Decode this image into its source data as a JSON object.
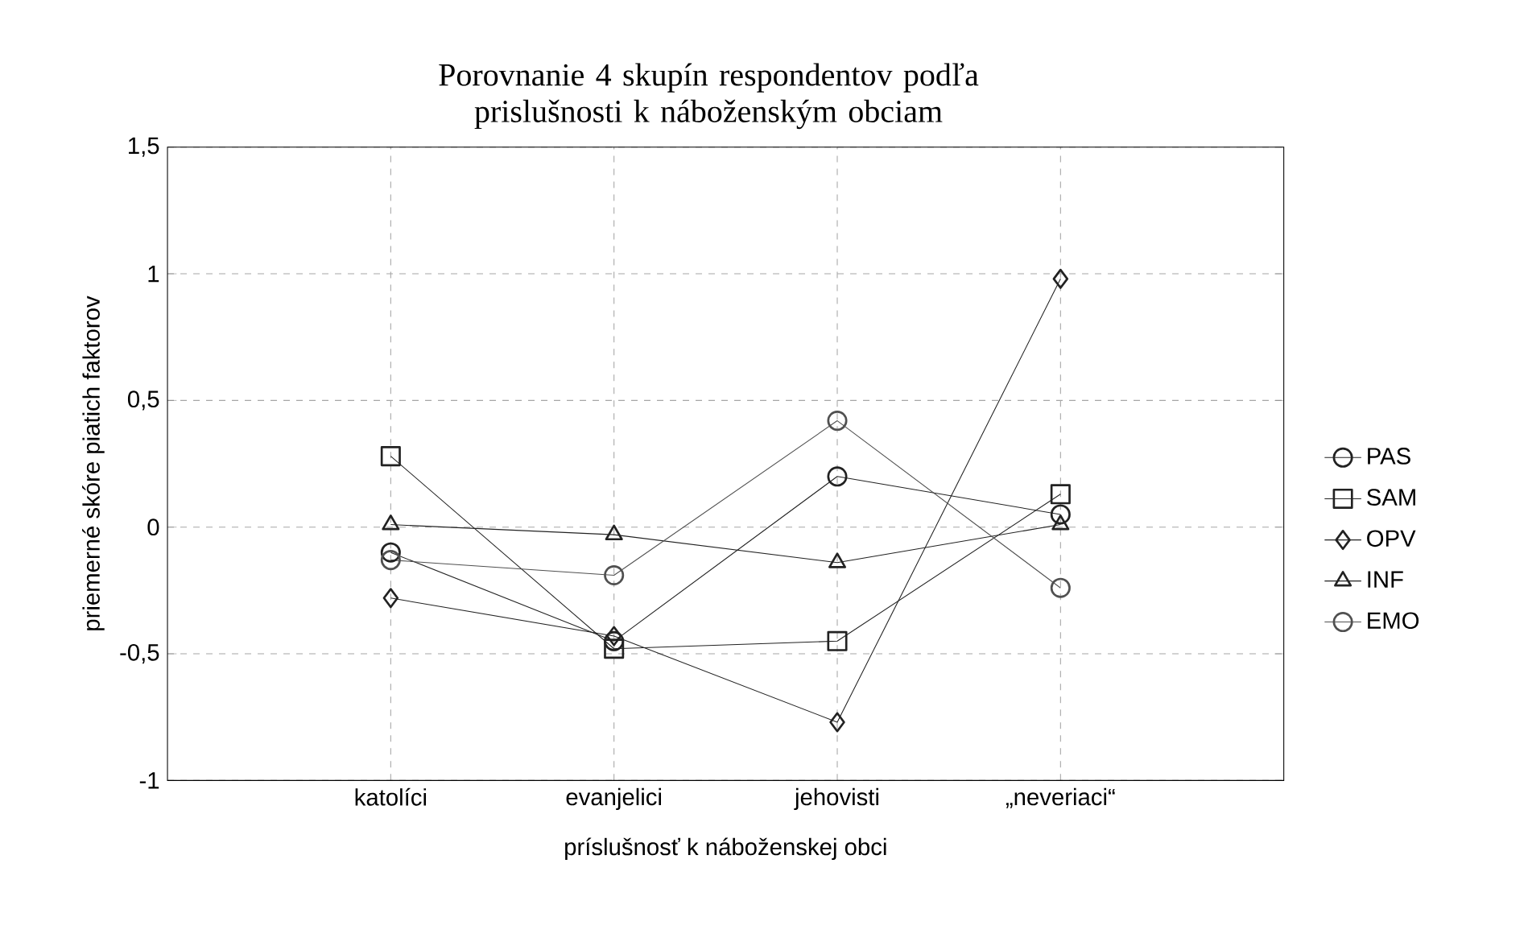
{
  "chart_data": {
    "type": "line",
    "title": "Porovnanie 4 skupín respondentov podľa prislušnosti k náboženským obciam",
    "xlabel": "príslušnosť k náboženskej obci",
    "ylabel": "priemerné skóre piatich faktorov",
    "categories": [
      "katolíci",
      "evanjelici",
      "jehovisti",
      "„neveriaci“"
    ],
    "series": [
      {
        "name": "PAS",
        "color": "#222222",
        "marker": "circle",
        "values": [
          -0.1,
          -0.45,
          0.2,
          0.05
        ]
      },
      {
        "name": "SAM",
        "color": "#222222",
        "marker": "square",
        "values": [
          0.28,
          -0.48,
          -0.45,
          0.13
        ]
      },
      {
        "name": "OPV",
        "color": "#222222",
        "marker": "diamond",
        "values": [
          -0.28,
          -0.43,
          -0.77,
          0.98
        ]
      },
      {
        "name": "INF",
        "color": "#222222",
        "marker": "triangle",
        "values": [
          0.01,
          -0.03,
          -0.14,
          0.01
        ]
      },
      {
        "name": "EMO",
        "color": "#505050",
        "marker": "circle",
        "values": [
          -0.13,
          -0.19,
          0.42,
          -0.24
        ]
      }
    ],
    "ylim": [
      -1,
      1.5
    ],
    "yticks": [
      {
        "value": -1,
        "label": "-1"
      },
      {
        "value": -0.5,
        "label": "-0,5"
      },
      {
        "value": 0,
        "label": "0"
      },
      {
        "value": 0.5,
        "label": "0,5"
      },
      {
        "value": 1,
        "label": "1"
      },
      {
        "value": 1.5,
        "label": "1,5"
      }
    ],
    "grid": true,
    "legend": "right",
    "line_style": "solid"
  }
}
